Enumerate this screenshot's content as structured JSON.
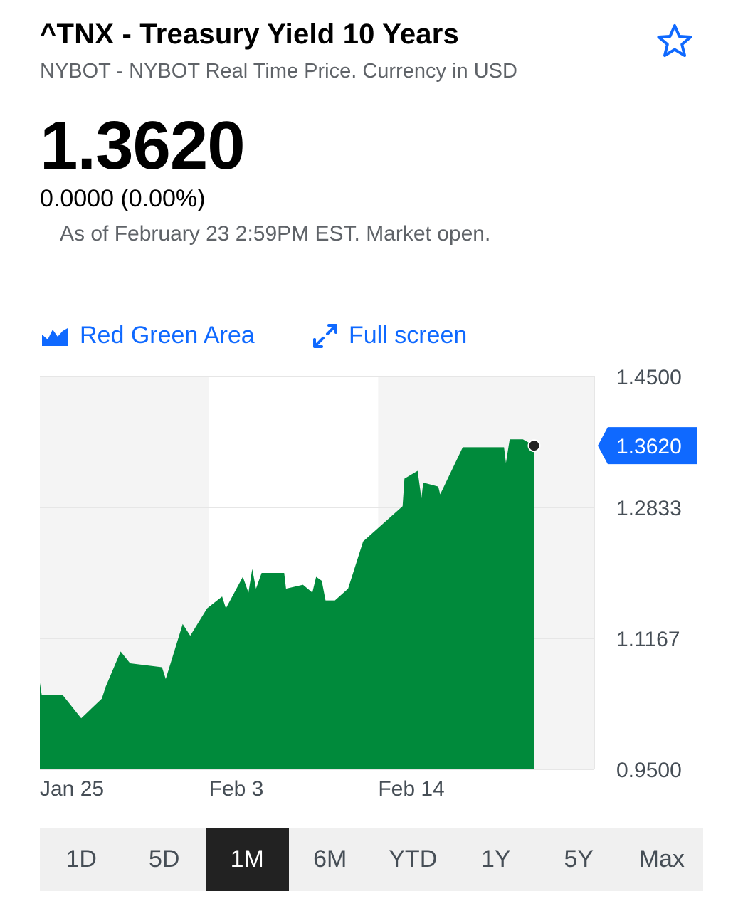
{
  "header": {
    "title": "^TNX - Treasury Yield 10 Years",
    "subtitle": "NYBOT - NYBOT Real Time Price. Currency in USD",
    "watchlist_icon": "star-outline-icon"
  },
  "quote": {
    "price": "1.3620",
    "change": "0.0000 (0.00%)",
    "as_of": "As of February 23 2:59PM EST. Market open."
  },
  "controls": {
    "chart_type_label": "Red Green Area",
    "chart_type_icon": "area-chart-icon",
    "fullscreen_label": "Full screen",
    "fullscreen_icon": "expand-arrows-icon"
  },
  "colors": {
    "accent": "#0f69ff",
    "area_fill": "#008a3b",
    "band": "#f4f4f4",
    "grid": "#e6e6e6",
    "active_range_bg": "#222222"
  },
  "chart_data": {
    "type": "area",
    "title": "",
    "xlabel": "",
    "ylabel": "",
    "ylim": [
      0.95,
      1.45
    ],
    "y_ticks": [
      "1.4500",
      "1.2833",
      "1.1167",
      "0.9500"
    ],
    "x_ticks": [
      {
        "label": "Jan 25",
        "x": 0
      },
      {
        "label": "Feb 3",
        "x": 9
      },
      {
        "label": "Feb 14",
        "x": 18
      }
    ],
    "last_price_label": "1.3620",
    "series": [
      {
        "values": [
          [
            0.0,
            1.06
          ],
          [
            0.1,
            1.045
          ],
          [
            1.2,
            1.045
          ],
          [
            2.2,
            1.015
          ],
          [
            3.3,
            1.04
          ],
          [
            3.5,
            1.055
          ],
          [
            4.3,
            1.1
          ],
          [
            4.8,
            1.085
          ],
          [
            6.5,
            1.08
          ],
          [
            6.7,
            1.065
          ],
          [
            7.6,
            1.135
          ],
          [
            8.0,
            1.12
          ],
          [
            8.9,
            1.155
          ],
          [
            9.7,
            1.17
          ],
          [
            9.9,
            1.155
          ],
          [
            10.8,
            1.195
          ],
          [
            11.1,
            1.175
          ],
          [
            11.3,
            1.205
          ],
          [
            11.5,
            1.18
          ],
          [
            11.8,
            1.2
          ],
          [
            13.0,
            1.2
          ],
          [
            13.1,
            1.18
          ],
          [
            14.0,
            1.185
          ],
          [
            14.5,
            1.175
          ],
          [
            14.7,
            1.195
          ],
          [
            15.0,
            1.19
          ],
          [
            15.2,
            1.165
          ],
          [
            15.7,
            1.165
          ],
          [
            16.4,
            1.18
          ],
          [
            17.2,
            1.24
          ],
          [
            19.3,
            1.285
          ],
          [
            19.4,
            1.32
          ],
          [
            20.1,
            1.33
          ],
          [
            20.3,
            1.295
          ],
          [
            20.4,
            1.315
          ],
          [
            21.2,
            1.31
          ],
          [
            21.3,
            1.3
          ],
          [
            22.5,
            1.36
          ],
          [
            24.7,
            1.36
          ],
          [
            24.8,
            1.34
          ],
          [
            25.0,
            1.37
          ],
          [
            25.7,
            1.37
          ],
          [
            26.3,
            1.362
          ]
        ]
      }
    ]
  },
  "ranges": {
    "items": [
      "1D",
      "5D",
      "1M",
      "6M",
      "YTD",
      "1Y",
      "5Y",
      "Max"
    ],
    "active": "1M"
  }
}
